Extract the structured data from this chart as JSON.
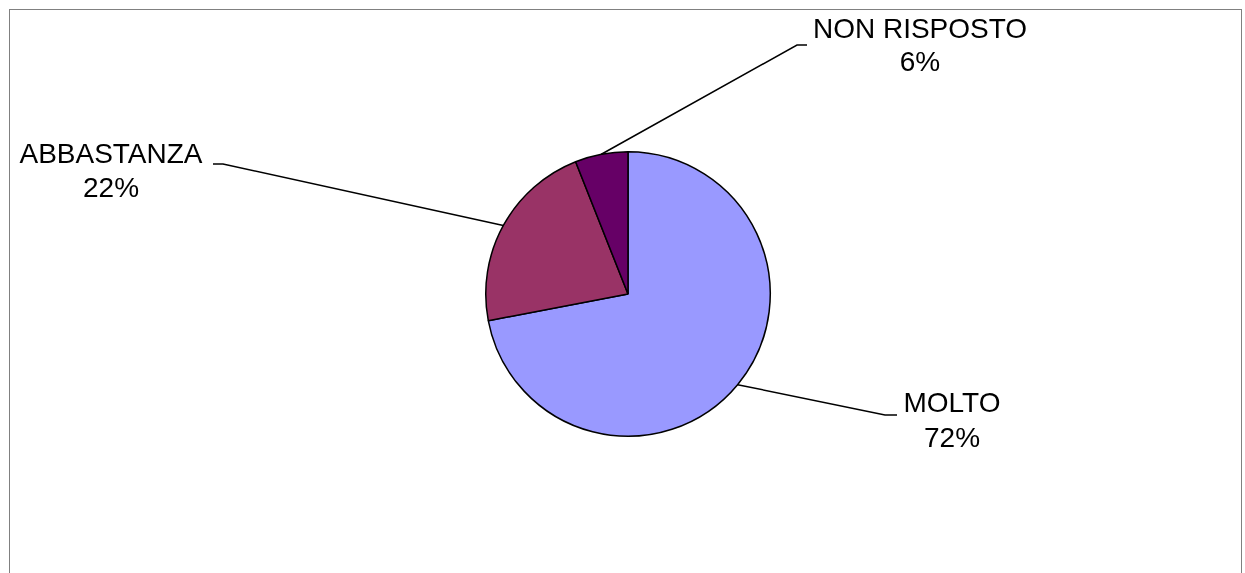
{
  "chart_data": {
    "type": "pie",
    "categories": [
      "MOLTO",
      "ABBASTANZA",
      "NON RISPOSTO"
    ],
    "values": [
      72,
      22,
      6
    ],
    "colors": [
      "#9999ff",
      "#993366",
      "#660066"
    ],
    "value_labels": [
      "72%",
      "22%",
      "6%"
    ],
    "legend": false
  }
}
